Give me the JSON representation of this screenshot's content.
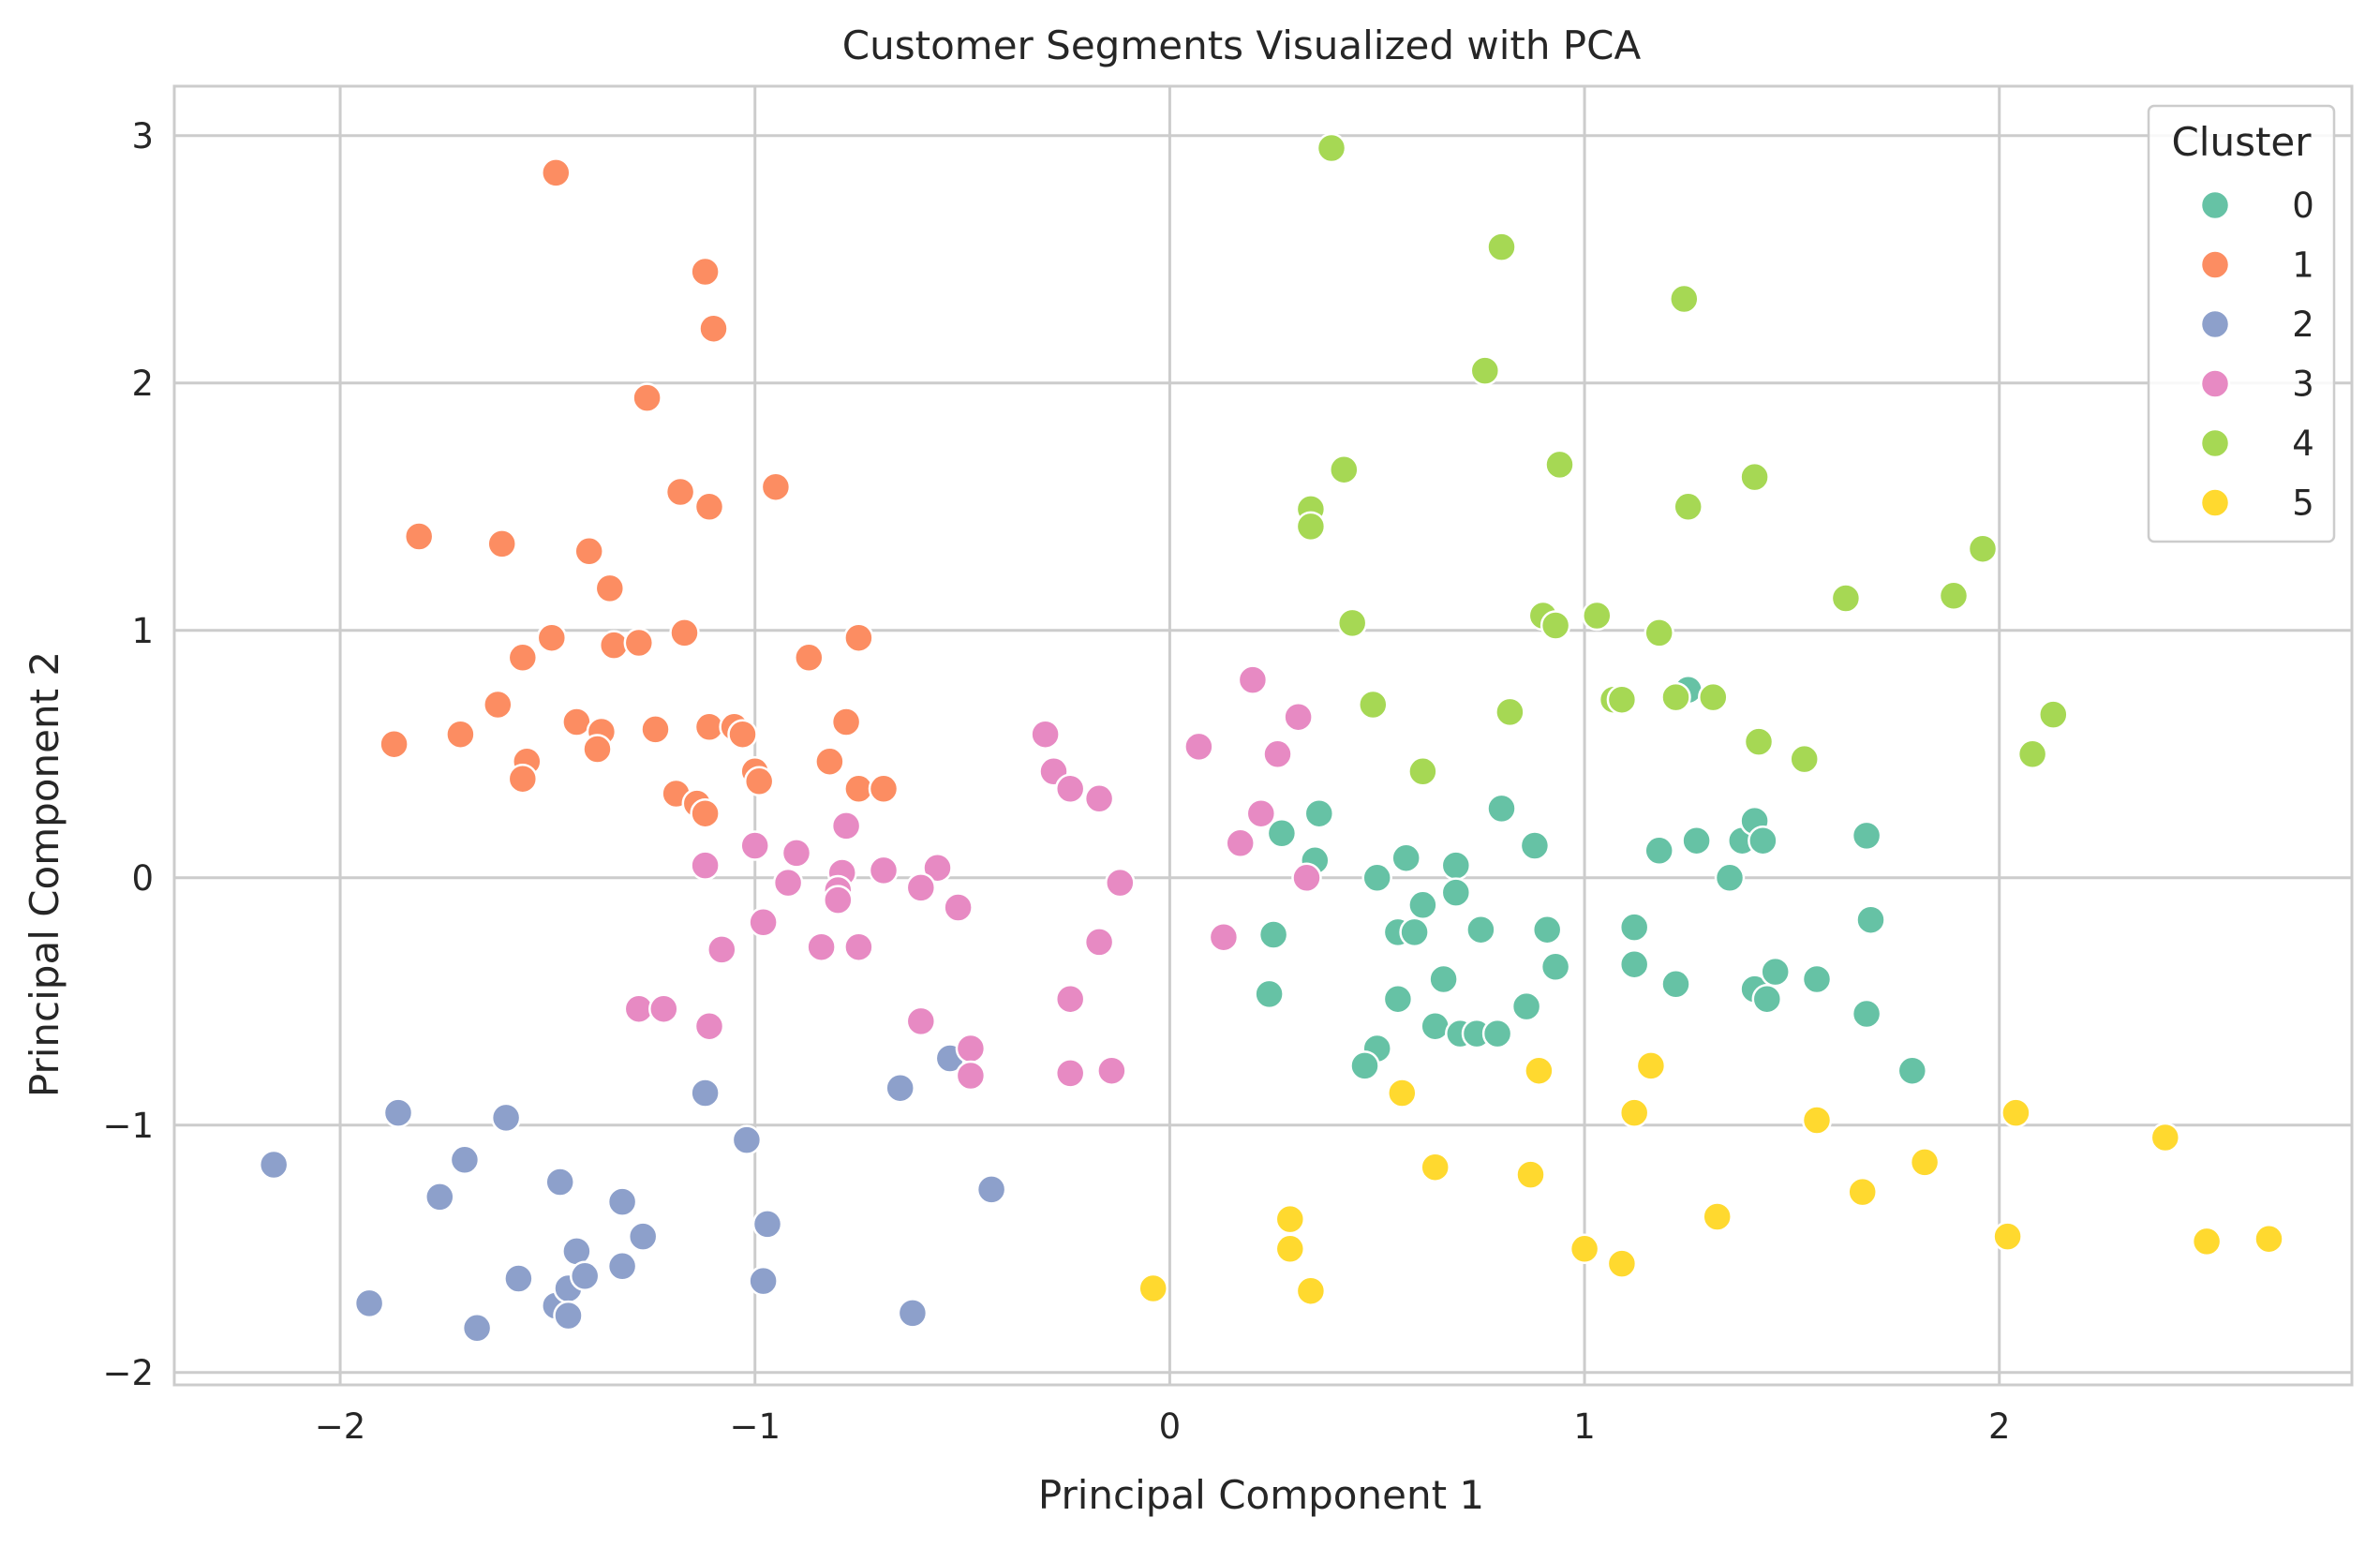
{
  "chart_data": {
    "type": "scatter",
    "title": "Customer Segments Visualized with PCA",
    "xlabel": "Principal Component 1",
    "ylabel": "Principal Component 2",
    "xlim": [
      -2.4,
      2.85
    ],
    "ylim": [
      -2.05,
      3.2
    ],
    "xticks": [
      -2,
      -1,
      0,
      1,
      2
    ],
    "yticks": [
      -2,
      -1,
      0,
      1,
      2,
      3
    ],
    "xtick_labels": [
      "−2",
      "−1",
      "0",
      "1",
      "2"
    ],
    "ytick_labels": [
      "−2",
      "−1",
      "0",
      "1",
      "2",
      "3"
    ],
    "grid": true,
    "legend": {
      "title": "Cluster",
      "placement": "top-right"
    },
    "series": [
      {
        "name": "0",
        "color": "#66c2a5",
        "points": [
          [
            1.25,
            0.76
          ],
          [
            0.27,
            0.18
          ],
          [
            0.36,
            0.26
          ],
          [
            0.35,
            0.07
          ],
          [
            0.25,
            -0.23
          ],
          [
            0.24,
            -0.47
          ],
          [
            0.5,
            0.0
          ],
          [
            0.57,
            0.08
          ],
          [
            0.55,
            -0.22
          ],
          [
            0.59,
            -0.22
          ],
          [
            0.61,
            -0.11
          ],
          [
            0.69,
            0.05
          ],
          [
            0.69,
            -0.06
          ],
          [
            0.8,
            0.28
          ],
          [
            0.88,
            0.13
          ],
          [
            0.75,
            -0.21
          ],
          [
            0.91,
            -0.21
          ],
          [
            0.93,
            -0.36
          ],
          [
            0.66,
            -0.41
          ],
          [
            0.55,
            -0.49
          ],
          [
            0.64,
            -0.6
          ],
          [
            0.7,
            -0.63
          ],
          [
            0.74,
            -0.63
          ],
          [
            0.79,
            -0.63
          ],
          [
            0.86,
            -0.52
          ],
          [
            0.5,
            -0.69
          ],
          [
            0.47,
            -0.76
          ],
          [
            1.18,
            0.11
          ],
          [
            1.27,
            0.15
          ],
          [
            1.35,
            0.0
          ],
          [
            1.38,
            0.15
          ],
          [
            1.41,
            0.23
          ],
          [
            1.43,
            0.15
          ],
          [
            1.12,
            -0.2
          ],
          [
            1.12,
            -0.35
          ],
          [
            1.22,
            -0.43
          ],
          [
            1.41,
            -0.45
          ],
          [
            1.44,
            -0.49
          ],
          [
            1.46,
            -0.38
          ],
          [
            1.56,
            -0.41
          ],
          [
            1.68,
            0.17
          ],
          [
            1.69,
            -0.17
          ],
          [
            1.68,
            -0.55
          ],
          [
            1.79,
            -0.78
          ]
        ]
      },
      {
        "name": "1",
        "color": "#fc8d62",
        "points": [
          [
            -1.48,
            2.85
          ],
          [
            -1.12,
            2.45
          ],
          [
            -1.1,
            2.22
          ],
          [
            -1.26,
            1.94
          ],
          [
            -1.18,
            1.56
          ],
          [
            -1.11,
            1.5
          ],
          [
            -0.95,
            1.58
          ],
          [
            -1.81,
            1.38
          ],
          [
            -1.61,
            1.35
          ],
          [
            -1.4,
            1.32
          ],
          [
            -1.35,
            1.17
          ],
          [
            -1.56,
            0.89
          ],
          [
            -1.49,
            0.97
          ],
          [
            -1.34,
            0.94
          ],
          [
            -1.28,
            0.95
          ],
          [
            -1.17,
            0.99
          ],
          [
            -0.87,
            0.89
          ],
          [
            -0.75,
            0.97
          ],
          [
            -1.62,
            0.7
          ],
          [
            -1.71,
            0.58
          ],
          [
            -1.87,
            0.54
          ],
          [
            -1.55,
            0.47
          ],
          [
            -1.56,
            0.4
          ],
          [
            -1.43,
            0.63
          ],
          [
            -1.37,
            0.59
          ],
          [
            -1.38,
            0.52
          ],
          [
            -1.24,
            0.6
          ],
          [
            -1.11,
            0.61
          ],
          [
            -1.05,
            0.61
          ],
          [
            -1.03,
            0.58
          ],
          [
            -1.0,
            0.43
          ],
          [
            -0.99,
            0.39
          ],
          [
            -1.19,
            0.34
          ],
          [
            -1.14,
            0.3
          ],
          [
            -1.12,
            0.26
          ],
          [
            -0.78,
            0.63
          ],
          [
            -0.82,
            0.47
          ],
          [
            -0.75,
            0.36
          ],
          [
            -0.69,
            0.36
          ]
        ]
      },
      {
        "name": "2",
        "color": "#8da0cb",
        "points": [
          [
            -2.16,
            -1.16
          ],
          [
            -1.86,
            -0.95
          ],
          [
            -1.6,
            -0.97
          ],
          [
            -1.7,
            -1.14
          ],
          [
            -1.76,
            -1.29
          ],
          [
            -1.47,
            -1.23
          ],
          [
            -1.32,
            -1.31
          ],
          [
            -1.93,
            -1.72
          ],
          [
            -1.67,
            -1.82
          ],
          [
            -1.57,
            -1.62
          ],
          [
            -1.48,
            -1.73
          ],
          [
            -1.45,
            -1.66
          ],
          [
            -1.45,
            -1.77
          ],
          [
            -1.43,
            -1.51
          ],
          [
            -1.41,
            -1.61
          ],
          [
            -1.32,
            -1.57
          ],
          [
            -1.27,
            -1.45
          ],
          [
            -1.12,
            -0.87
          ],
          [
            -1.02,
            -1.06
          ],
          [
            -0.97,
            -1.4
          ],
          [
            -0.98,
            -1.63
          ],
          [
            -0.65,
            -0.85
          ],
          [
            -0.53,
            -0.73
          ],
          [
            -0.43,
            -1.26
          ],
          [
            -0.62,
            -1.76
          ]
        ]
      },
      {
        "name": "3",
        "color": "#e78ac3",
        "points": [
          [
            0.2,
            0.8
          ],
          [
            0.31,
            0.65
          ],
          [
            0.07,
            0.53
          ],
          [
            0.26,
            0.5
          ],
          [
            0.22,
            0.26
          ],
          [
            0.17,
            0.14
          ],
          [
            0.33,
            0.0
          ],
          [
            0.13,
            -0.24
          ],
          [
            -0.3,
            0.58
          ],
          [
            -0.28,
            0.43
          ],
          [
            -0.24,
            0.36
          ],
          [
            -0.17,
            0.32
          ],
          [
            -0.12,
            -0.02
          ],
          [
            -0.17,
            -0.26
          ],
          [
            -0.24,
            -0.49
          ],
          [
            -0.24,
            -0.79
          ],
          [
            -0.14,
            -0.78
          ],
          [
            -0.78,
            0.21
          ],
          [
            -0.79,
            0.02
          ],
          [
            -0.8,
            -0.05
          ],
          [
            -0.8,
            -0.09
          ],
          [
            -0.69,
            0.03
          ],
          [
            -0.56,
            0.04
          ],
          [
            -0.6,
            -0.04
          ],
          [
            -0.51,
            -0.12
          ],
          [
            -1.0,
            0.13
          ],
          [
            -1.12,
            0.05
          ],
          [
            -0.9,
            0.1
          ],
          [
            -0.92,
            -0.02
          ],
          [
            -0.98,
            -0.18
          ],
          [
            -1.08,
            -0.29
          ],
          [
            -0.84,
            -0.28
          ],
          [
            -0.75,
            -0.28
          ],
          [
            -1.28,
            -0.53
          ],
          [
            -1.22,
            -0.53
          ],
          [
            -1.11,
            -0.6
          ],
          [
            -0.6,
            -0.58
          ],
          [
            -0.48,
            -0.69
          ],
          [
            -0.48,
            -0.8
          ]
        ]
      },
      {
        "name": "4",
        "color": "#a6d854",
        "points": [
          [
            0.39,
            2.95
          ],
          [
            0.8,
            2.55
          ],
          [
            1.24,
            2.34
          ],
          [
            0.76,
            2.05
          ],
          [
            0.42,
            1.65
          ],
          [
            0.94,
            1.67
          ],
          [
            0.34,
            1.49
          ],
          [
            0.34,
            1.42
          ],
          [
            1.25,
            1.5
          ],
          [
            1.41,
            1.62
          ],
          [
            1.96,
            1.33
          ],
          [
            1.63,
            1.13
          ],
          [
            1.89,
            1.14
          ],
          [
            0.44,
            1.03
          ],
          [
            0.9,
            1.06
          ],
          [
            0.93,
            1.02
          ],
          [
            1.03,
            1.06
          ],
          [
            1.18,
            0.99
          ],
          [
            1.07,
            0.72
          ],
          [
            1.09,
            0.72
          ],
          [
            1.22,
            0.73
          ],
          [
            1.31,
            0.73
          ],
          [
            0.49,
            0.7
          ],
          [
            0.82,
            0.67
          ],
          [
            0.61,
            0.43
          ],
          [
            1.42,
            0.55
          ],
          [
            1.53,
            0.48
          ],
          [
            2.08,
            0.5
          ],
          [
            2.13,
            0.66
          ]
        ]
      },
      {
        "name": "5",
        "color": "#ffd92f",
        "points": [
          [
            0.56,
            -0.87
          ],
          [
            0.89,
            -0.78
          ],
          [
            1.16,
            -0.76
          ],
          [
            1.12,
            -0.95
          ],
          [
            0.64,
            -1.17
          ],
          [
            0.87,
            -1.2
          ],
          [
            0.29,
            -1.38
          ],
          [
            0.29,
            -1.5
          ],
          [
            0.34,
            -1.67
          ],
          [
            -0.04,
            -1.66
          ],
          [
            1.0,
            -1.5
          ],
          [
            1.09,
            -1.56
          ],
          [
            1.32,
            -1.37
          ],
          [
            1.56,
            -0.98
          ],
          [
            1.67,
            -1.27
          ],
          [
            1.82,
            -1.15
          ],
          [
            2.04,
            -0.95
          ],
          [
            2.02,
            -1.45
          ],
          [
            2.4,
            -1.05
          ],
          [
            2.5,
            -1.47
          ],
          [
            2.65,
            -1.46
          ]
        ]
      }
    ]
  }
}
